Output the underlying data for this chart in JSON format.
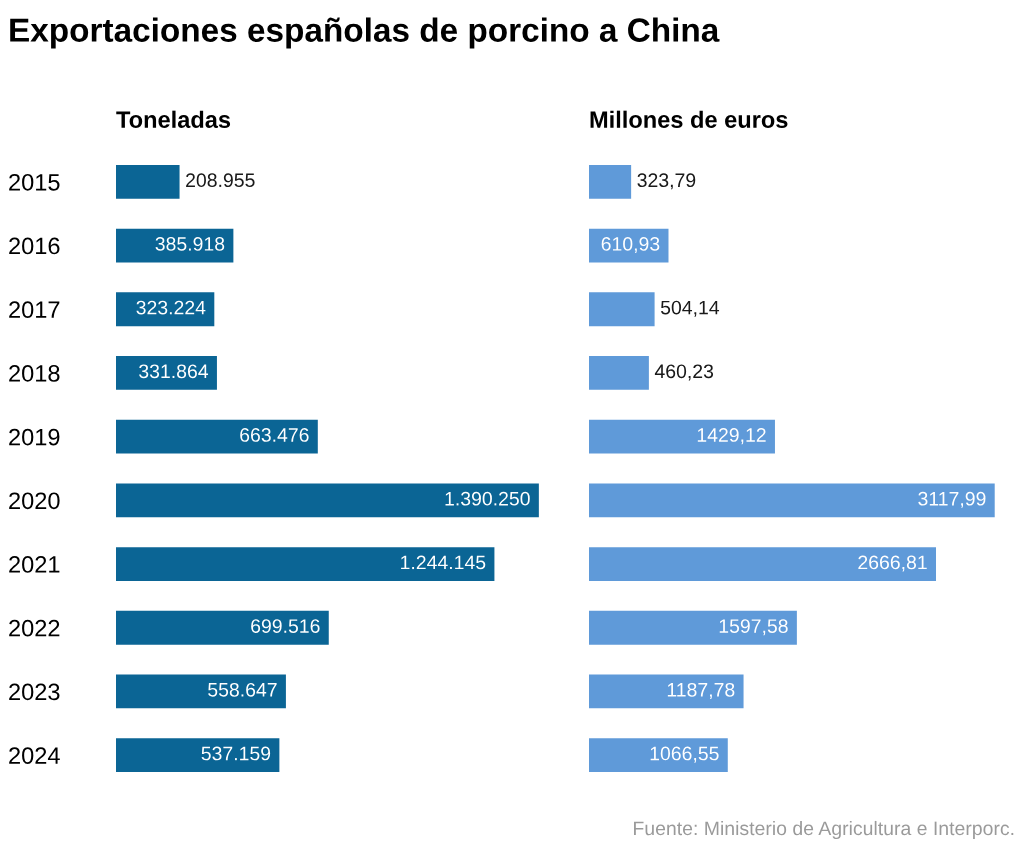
{
  "chart_data": [
    {
      "type": "bar",
      "orientation": "horizontal",
      "title": "Toneladas",
      "categories": [
        "2015",
        "2016",
        "2017",
        "2018",
        "2019",
        "2020",
        "2021",
        "2022",
        "2023",
        "2024"
      ],
      "color": "#0b6595",
      "tick_labels": "y",
      "grid": false,
      "legend": false,
      "values": [
        208955,
        385918,
        323224,
        331864,
        663476,
        1390250,
        1244145,
        699516,
        558647,
        537159
      ],
      "value_labels": [
        "208.955",
        "385.918",
        "323.224",
        "331.864",
        "663.476",
        "1.390.250",
        "1.244.145",
        "699.516",
        "558.647",
        "537.159"
      ],
      "annotations": [
        "Exportaciones españolas de porcino a China"
      ]
    },
    {
      "type": "bar",
      "orientation": "horizontal",
      "title": "Millones de euros",
      "categories": [
        "2015",
        "2016",
        "2017",
        "2018",
        "2019",
        "2020",
        "2021",
        "2022",
        "2023",
        "2024"
      ],
      "color": "#5f9ad9",
      "tick_labels": false,
      "grid": false,
      "legend": false,
      "values": [
        323.79,
        610.93,
        504.14,
        460.23,
        1429.12,
        3117.99,
        2666.81,
        1597.58,
        1187.78,
        1066.55
      ],
      "value_labels": [
        "323,79",
        "610,93",
        "504,14",
        "460,23",
        "1429,12",
        "3117,99",
        "2666,81",
        "1597,58",
        "1187,78",
        "1066,55"
      ],
      "annotations": [
        "Fuente: Ministerio de Agricultura e Interporc."
      ]
    }
  ]
}
